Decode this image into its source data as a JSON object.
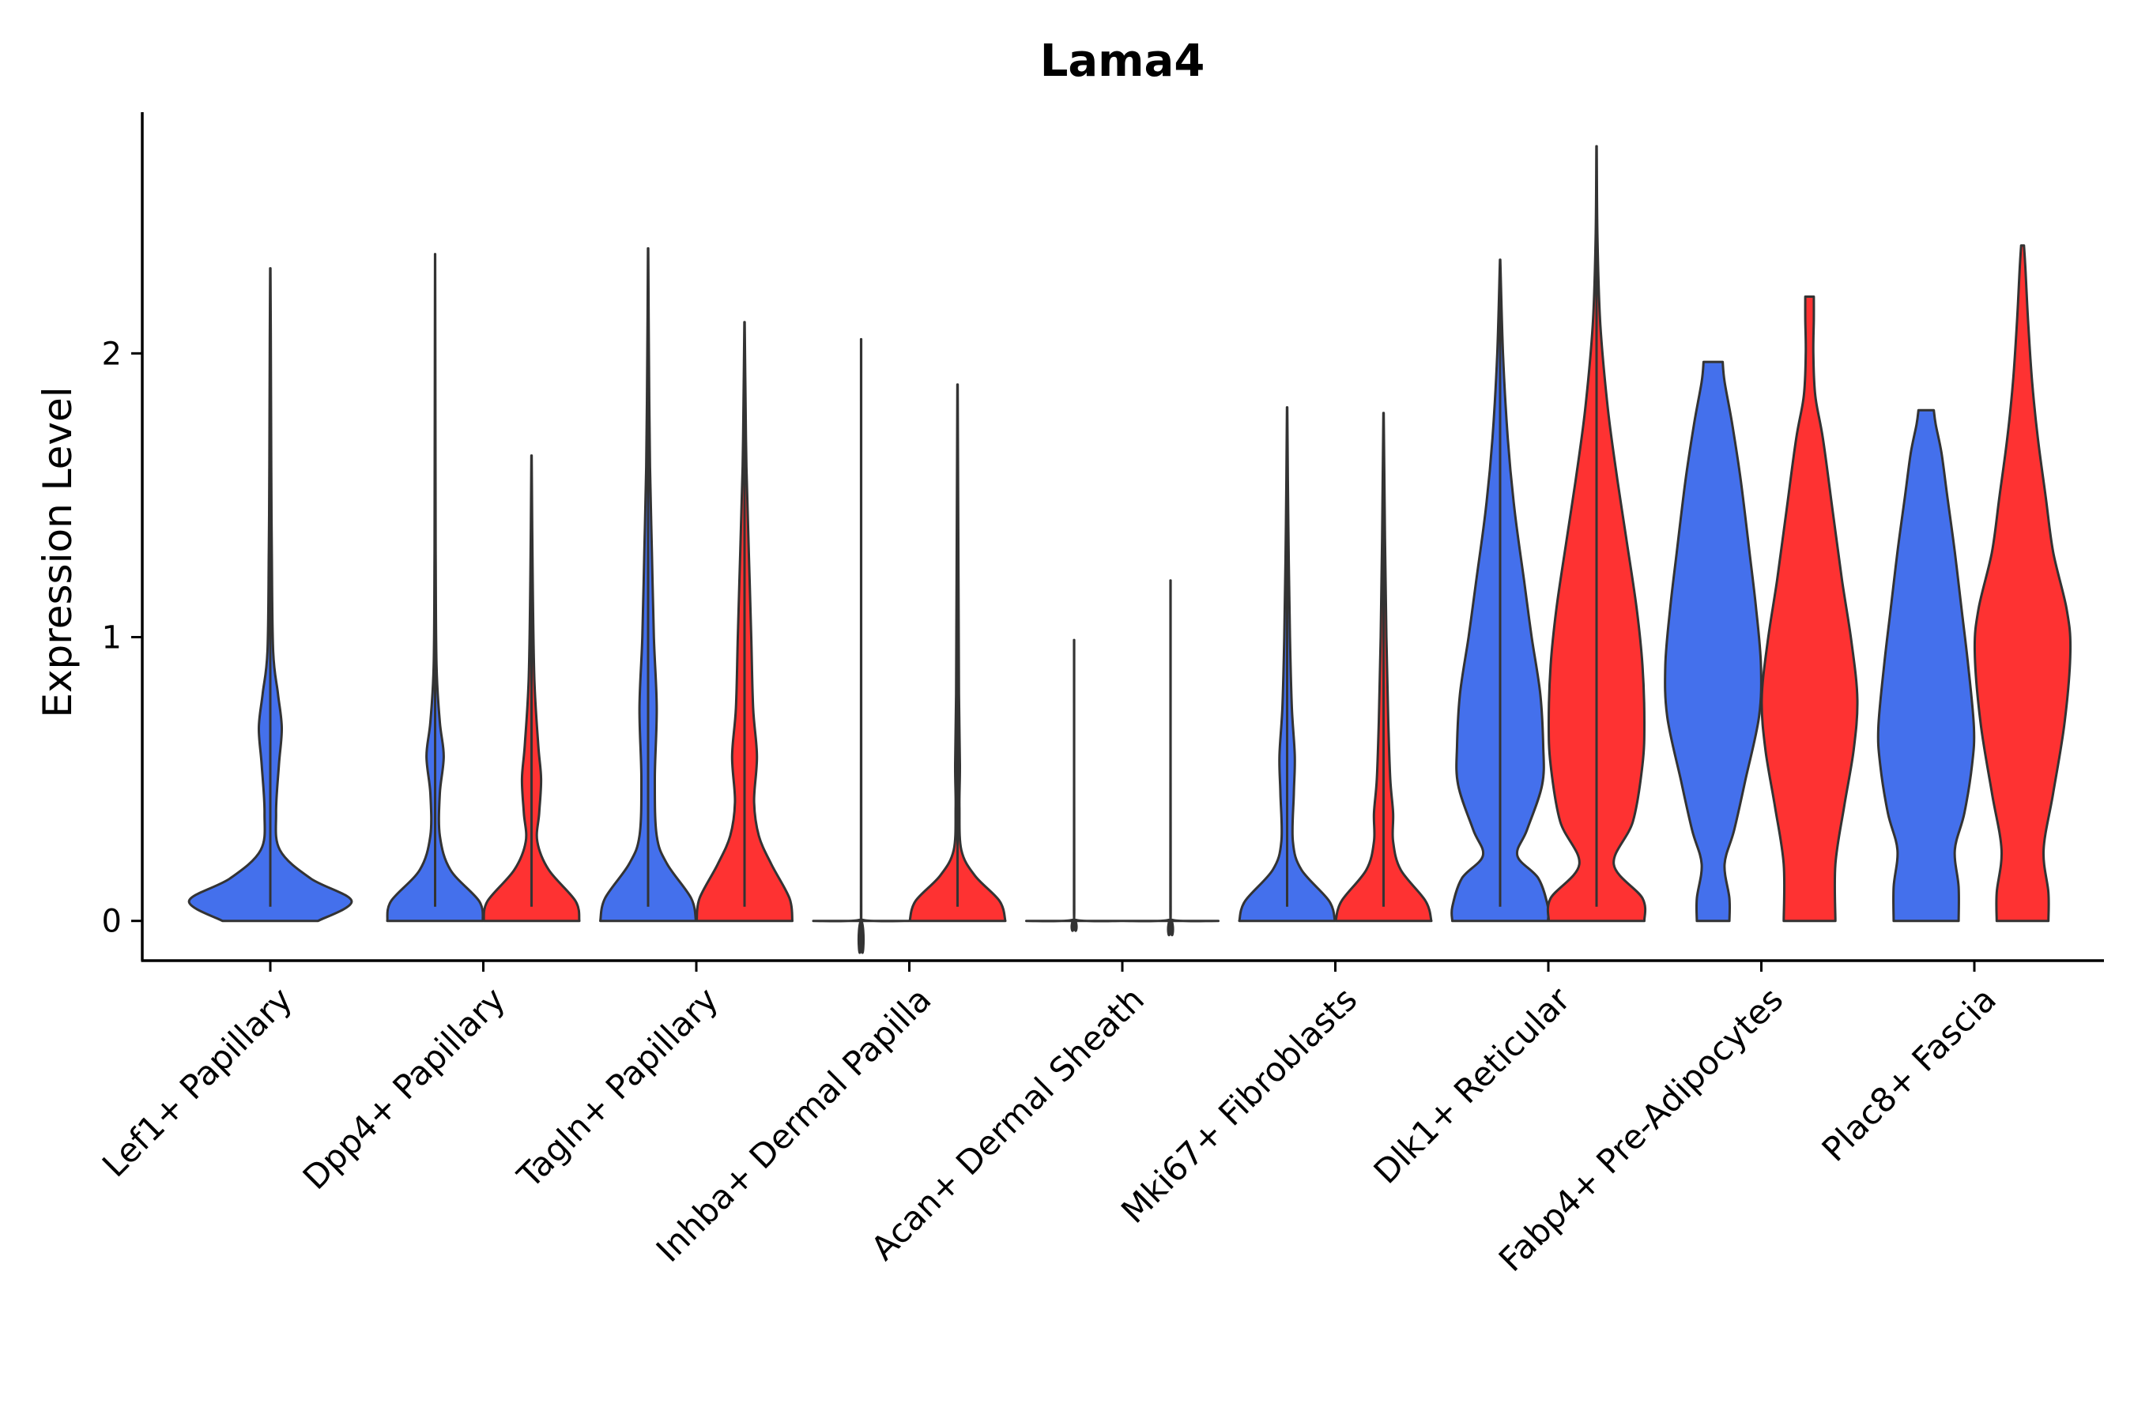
{
  "chart_data": {
    "type": "violin",
    "title": "Lama4",
    "xlabel": "",
    "ylabel": "Expression Level",
    "ylim": [
      -0.14,
      2.85
    ],
    "yticks": [
      0,
      1,
      2
    ],
    "ytick_labels": [
      "0",
      "1",
      "2"
    ],
    "grid": false,
    "legend": "none",
    "colors": {
      "blue": "#4470ec",
      "red": "#fe3232",
      "outline": "#333333"
    },
    "categories": [
      "Lef1+ Papillary",
      "Dpp4+ Papillary",
      "Tagln+ Papillary",
      "Inhba+ Dermal Papilla",
      "Acan+ Dermal Sheath",
      "Mki67+ Fibroblasts",
      "Dlk1+ Reticular",
      "Fabp4+ Pre-Adipocytes",
      "Plac8+ Fascia"
    ],
    "violins": [
      {
        "category": "Lef1+ Papillary",
        "group": "blue",
        "max": 2.3,
        "profile": [
          [
            0,
            0.5
          ],
          [
            0.07,
            0.85
          ],
          [
            0.15,
            0.42
          ],
          [
            0.25,
            0.1
          ],
          [
            0.38,
            0.06
          ],
          [
            0.55,
            0.09
          ],
          [
            0.68,
            0.12
          ],
          [
            0.8,
            0.08
          ],
          [
            0.95,
            0.03
          ],
          [
            1.3,
            0.016
          ],
          [
            1.6,
            0.01
          ],
          [
            2.0,
            0.006
          ],
          [
            2.3,
            0.002
          ]
        ]
      },
      {
        "category": "Dpp4+ Papillary",
        "group": "blue",
        "max": 2.35,
        "profile": [
          [
            0,
            0.5
          ],
          [
            0.07,
            0.46
          ],
          [
            0.18,
            0.16
          ],
          [
            0.3,
            0.05
          ],
          [
            0.45,
            0.05
          ],
          [
            0.58,
            0.09
          ],
          [
            0.7,
            0.05
          ],
          [
            0.9,
            0.015
          ],
          [
            1.3,
            0.006
          ],
          [
            1.8,
            0.003
          ],
          [
            2.35,
            0.001
          ]
        ]
      },
      {
        "category": "Dpp4+ Papillary",
        "group": "red",
        "max": 1.64,
        "profile": [
          [
            0,
            0.5
          ],
          [
            0.07,
            0.46
          ],
          [
            0.18,
            0.18
          ],
          [
            0.28,
            0.06
          ],
          [
            0.38,
            0.08
          ],
          [
            0.5,
            0.1
          ],
          [
            0.62,
            0.07
          ],
          [
            0.85,
            0.03
          ],
          [
            1.2,
            0.012
          ],
          [
            1.64,
            0.002
          ]
        ]
      },
      {
        "category": "Tagln+ Papillary",
        "group": "blue",
        "max": 2.37,
        "profile": [
          [
            0,
            0.5
          ],
          [
            0.08,
            0.45
          ],
          [
            0.2,
            0.2
          ],
          [
            0.3,
            0.09
          ],
          [
            0.5,
            0.07
          ],
          [
            0.75,
            0.09
          ],
          [
            1.0,
            0.06
          ],
          [
            1.3,
            0.04
          ],
          [
            1.6,
            0.02
          ],
          [
            2.0,
            0.008
          ],
          [
            2.37,
            0.002
          ]
        ]
      },
      {
        "category": "Tagln+ Papillary",
        "group": "red",
        "max": 2.11,
        "profile": [
          [
            0,
            0.5
          ],
          [
            0.08,
            0.47
          ],
          [
            0.2,
            0.28
          ],
          [
            0.3,
            0.15
          ],
          [
            0.42,
            0.1
          ],
          [
            0.58,
            0.13
          ],
          [
            0.75,
            0.09
          ],
          [
            1.0,
            0.07
          ],
          [
            1.3,
            0.045
          ],
          [
            1.6,
            0.02
          ],
          [
            1.9,
            0.008
          ],
          [
            2.11,
            0.002
          ]
        ]
      },
      {
        "category": "Inhba+ Dermal Papilla",
        "group": "blue",
        "max": 2.05,
        "profile": [
          [
            0,
            0.5
          ],
          [
            0.004,
            0.015
          ],
          [
            0.05,
            0.002
          ],
          [
            2.05,
            0.001
          ]
        ]
      },
      {
        "category": "Inhba+ Dermal Papilla",
        "group": "red",
        "max": 1.89,
        "profile": [
          [
            0,
            0.5
          ],
          [
            0.07,
            0.44
          ],
          [
            0.16,
            0.18
          ],
          [
            0.25,
            0.04
          ],
          [
            0.4,
            0.02
          ],
          [
            0.55,
            0.025
          ],
          [
            0.8,
            0.015
          ],
          [
            1.2,
            0.01
          ],
          [
            1.89,
            0.002
          ]
        ]
      },
      {
        "category": "Acan+ Dermal Sheath",
        "group": "blue",
        "max": 0.99,
        "profile": [
          [
            0,
            0.5
          ],
          [
            0.004,
            0.015
          ],
          [
            0.05,
            0.002
          ],
          [
            0.99,
            0.001
          ]
        ]
      },
      {
        "category": "Acan+ Dermal Sheath",
        "group": "red",
        "max": 1.2,
        "profile": [
          [
            0,
            0.5
          ],
          [
            0.004,
            0.015
          ],
          [
            0.05,
            0.002
          ],
          [
            1.2,
            0.001
          ]
        ]
      },
      {
        "category": "Mki67+ Fibroblasts",
        "group": "blue",
        "max": 1.81,
        "profile": [
          [
            0,
            0.5
          ],
          [
            0.07,
            0.44
          ],
          [
            0.18,
            0.15
          ],
          [
            0.28,
            0.06
          ],
          [
            0.45,
            0.07
          ],
          [
            0.58,
            0.08
          ],
          [
            0.75,
            0.05
          ],
          [
            1.0,
            0.03
          ],
          [
            1.4,
            0.012
          ],
          [
            1.81,
            0.002
          ]
        ]
      },
      {
        "category": "Mki67+ Fibroblasts",
        "group": "red",
        "max": 1.79,
        "profile": [
          [
            0,
            0.5
          ],
          [
            0.07,
            0.44
          ],
          [
            0.18,
            0.18
          ],
          [
            0.28,
            0.1
          ],
          [
            0.38,
            0.1
          ],
          [
            0.5,
            0.07
          ],
          [
            0.7,
            0.05
          ],
          [
            1.0,
            0.03
          ],
          [
            1.35,
            0.015
          ],
          [
            1.79,
            0.002
          ]
        ]
      },
      {
        "category": "Dlk1+ Reticular",
        "group": "blue",
        "max": 2.33,
        "profile": [
          [
            0,
            0.5
          ],
          [
            0.05,
            0.5
          ],
          [
            0.15,
            0.4
          ],
          [
            0.23,
            0.18
          ],
          [
            0.32,
            0.28
          ],
          [
            0.48,
            0.44
          ],
          [
            0.62,
            0.45
          ],
          [
            0.8,
            0.42
          ],
          [
            1.0,
            0.33
          ],
          [
            1.2,
            0.25
          ],
          [
            1.45,
            0.15
          ],
          [
            1.7,
            0.08
          ],
          [
            2.0,
            0.03
          ],
          [
            2.33,
            0.002
          ]
        ]
      },
      {
        "category": "Dlk1+ Reticular",
        "group": "red",
        "max": 2.73,
        "profile": [
          [
            0,
            0.5
          ],
          [
            0.08,
            0.48
          ],
          [
            0.2,
            0.18
          ],
          [
            0.35,
            0.38
          ],
          [
            0.55,
            0.48
          ],
          [
            0.7,
            0.5
          ],
          [
            0.9,
            0.48
          ],
          [
            1.1,
            0.42
          ],
          [
            1.35,
            0.31
          ],
          [
            1.55,
            0.22
          ],
          [
            1.8,
            0.12
          ],
          [
            2.1,
            0.04
          ],
          [
            2.4,
            0.01
          ],
          [
            2.73,
            0.002
          ]
        ]
      },
      {
        "category": "Fabp4+ Pre-Adipocytes",
        "group": "blue",
        "max": 1.97,
        "profile": [
          [
            0,
            0.17
          ],
          [
            0.08,
            0.17
          ],
          [
            0.2,
            0.12
          ],
          [
            0.32,
            0.22
          ],
          [
            0.5,
            0.34
          ],
          [
            0.72,
            0.48
          ],
          [
            0.9,
            0.5
          ],
          [
            1.1,
            0.45
          ],
          [
            1.3,
            0.38
          ],
          [
            1.55,
            0.29
          ],
          [
            1.75,
            0.2
          ],
          [
            1.9,
            0.12
          ],
          [
            1.97,
            0.1
          ]
        ]
      },
      {
        "category": "Fabp4+ Pre-Adipocytes",
        "group": "red",
        "max": 2.2,
        "profile": [
          [
            0,
            0.27
          ],
          [
            0.2,
            0.27
          ],
          [
            0.4,
            0.36
          ],
          [
            0.6,
            0.46
          ],
          [
            0.78,
            0.5
          ],
          [
            0.98,
            0.44
          ],
          [
            1.2,
            0.34
          ],
          [
            1.45,
            0.24
          ],
          [
            1.7,
            0.14
          ],
          [
            1.85,
            0.06
          ],
          [
            2.0,
            0.04
          ],
          [
            2.12,
            0.045
          ],
          [
            2.2,
            0.045
          ]
        ]
      },
      {
        "category": "Plac8+ Fascia",
        "group": "blue",
        "max": 1.8,
        "profile": [
          [
            0,
            0.34
          ],
          [
            0.12,
            0.34
          ],
          [
            0.25,
            0.3
          ],
          [
            0.38,
            0.4
          ],
          [
            0.55,
            0.48
          ],
          [
            0.68,
            0.5
          ],
          [
            0.9,
            0.44
          ],
          [
            1.1,
            0.37
          ],
          [
            1.3,
            0.3
          ],
          [
            1.5,
            0.22
          ],
          [
            1.65,
            0.16
          ],
          [
            1.75,
            0.1
          ],
          [
            1.8,
            0.08
          ]
        ]
      },
      {
        "category": "Plac8+ Fascia",
        "group": "red",
        "max": 2.38,
        "profile": [
          [
            0,
            0.27
          ],
          [
            0.1,
            0.27
          ],
          [
            0.25,
            0.22
          ],
          [
            0.45,
            0.32
          ],
          [
            0.7,
            0.44
          ],
          [
            0.95,
            0.5
          ],
          [
            1.1,
            0.46
          ],
          [
            1.3,
            0.32
          ],
          [
            1.5,
            0.24
          ],
          [
            1.7,
            0.16
          ],
          [
            1.9,
            0.1
          ],
          [
            2.1,
            0.06
          ],
          [
            2.3,
            0.03
          ],
          [
            2.38,
            0.015
          ]
        ]
      }
    ]
  }
}
